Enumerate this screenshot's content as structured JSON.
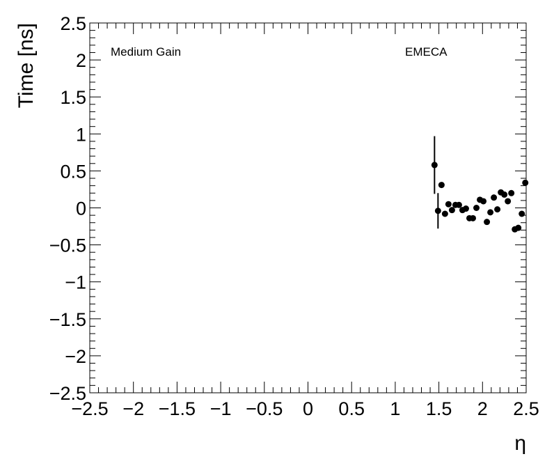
{
  "chart_data": {
    "type": "scatter",
    "title": "",
    "xlabel": "η",
    "ylabel": "Time [ns]",
    "xlim": [
      -2.5,
      2.5
    ],
    "ylim": [
      -2.5,
      2.5
    ],
    "x_ticks": [
      "−2.5",
      "−2",
      "−1.5",
      "−1",
      "−0.5",
      "0",
      "0.5",
      "1",
      "1.5",
      "2",
      "2.5"
    ],
    "y_ticks": [
      "−2.5",
      "−2",
      "−1.5",
      "−1",
      "−0.5",
      "0",
      "0.5",
      "1",
      "1.5",
      "2",
      "2.5"
    ],
    "grid": false,
    "annotations": {
      "gain": "Medium Gain",
      "region": "EMECA"
    },
    "series": [
      {
        "color": "#000000",
        "points": [
          {
            "x": 1.45,
            "y": 0.58,
            "err": 0.39
          },
          {
            "x": 1.49,
            "y": -0.04,
            "err": 0.24
          },
          {
            "x": 1.53,
            "y": 0.31,
            "err": 0.02
          },
          {
            "x": 1.57,
            "y": -0.08,
            "err": 0.02
          },
          {
            "x": 1.61,
            "y": 0.05,
            "err": 0.02
          },
          {
            "x": 1.65,
            "y": -0.03,
            "err": 0.02
          },
          {
            "x": 1.69,
            "y": 0.04,
            "err": 0.02
          },
          {
            "x": 1.73,
            "y": 0.04,
            "err": 0.02
          },
          {
            "x": 1.77,
            "y": -0.03,
            "err": 0.02
          },
          {
            "x": 1.81,
            "y": -0.01,
            "err": 0.02
          },
          {
            "x": 1.85,
            "y": -0.14,
            "err": 0.02
          },
          {
            "x": 1.89,
            "y": -0.14,
            "err": 0.02
          },
          {
            "x": 1.93,
            "y": 0.0,
            "err": 0.02
          },
          {
            "x": 1.97,
            "y": 0.11,
            "err": 0.02
          },
          {
            "x": 2.01,
            "y": 0.09,
            "err": 0.02
          },
          {
            "x": 2.05,
            "y": -0.19,
            "err": 0.02
          },
          {
            "x": 2.09,
            "y": -0.06,
            "err": 0.02
          },
          {
            "x": 2.13,
            "y": 0.14,
            "err": 0.02
          },
          {
            "x": 2.17,
            "y": -0.02,
            "err": 0.02
          },
          {
            "x": 2.21,
            "y": 0.21,
            "err": 0.02
          },
          {
            "x": 2.25,
            "y": 0.18,
            "err": 0.02
          },
          {
            "x": 2.29,
            "y": 0.09,
            "err": 0.02
          },
          {
            "x": 2.33,
            "y": 0.2,
            "err": 0.02
          },
          {
            "x": 2.37,
            "y": -0.29,
            "err": 0.02
          },
          {
            "x": 2.41,
            "y": -0.27,
            "err": 0.02
          },
          {
            "x": 2.45,
            "y": -0.08,
            "err": 0.02
          },
          {
            "x": 2.49,
            "y": 0.34,
            "err": 0.02
          }
        ]
      }
    ]
  }
}
